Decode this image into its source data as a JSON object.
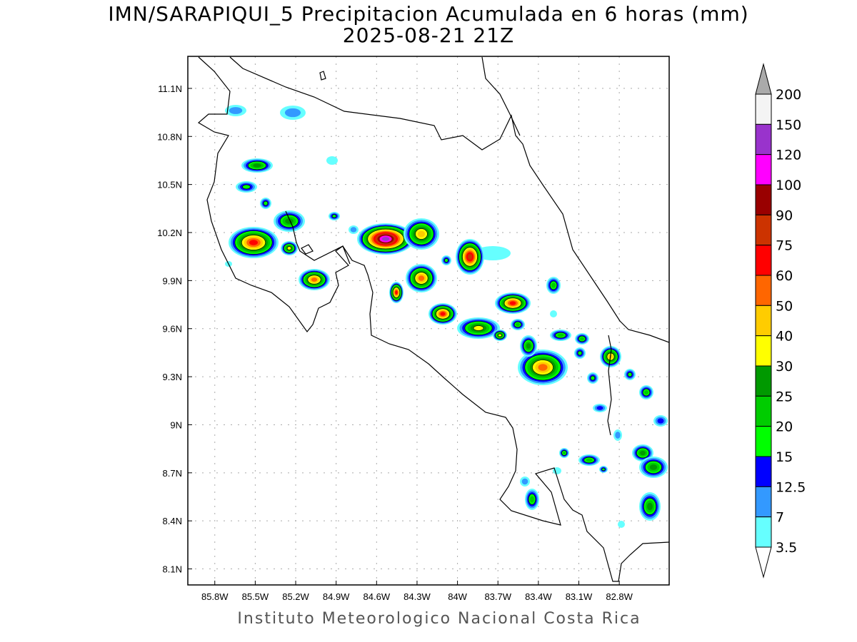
{
  "title": {
    "line1": "IMN/SARAPIQUI_5 Precipitacion Acumulada en 6 horas (mm)",
    "line2": "2025-08-21 21Z"
  },
  "credit": "Instituto Meteorologico Nacional Costa Rica",
  "map": {
    "lon_range": [
      -86.0,
      -82.43
    ],
    "lat_range": [
      8.0,
      11.3
    ],
    "lon_ticks": [
      {
        "value": -85.8,
        "label": "85.8W"
      },
      {
        "value": -85.5,
        "label": "85.5W"
      },
      {
        "value": -85.2,
        "label": "85.2W"
      },
      {
        "value": -84.9,
        "label": "84.9W"
      },
      {
        "value": -84.6,
        "label": "84.6W"
      },
      {
        "value": -84.3,
        "label": "84.3W"
      },
      {
        "value": -84.0,
        "label": "84W"
      },
      {
        "value": -83.7,
        "label": "83.7W"
      },
      {
        "value": -83.4,
        "label": "83.4W"
      },
      {
        "value": -83.1,
        "label": "83.1W"
      },
      {
        "value": -82.8,
        "label": "82.8W"
      }
    ],
    "lat_ticks": [
      {
        "value": 11.1,
        "label": "11.1N"
      },
      {
        "value": 10.8,
        "label": "10.8N"
      },
      {
        "value": 10.5,
        "label": "10.5N"
      },
      {
        "value": 10.2,
        "label": "10.2N"
      },
      {
        "value": 9.9,
        "label": "9.9N"
      },
      {
        "value": 9.6,
        "label": "9.6N"
      },
      {
        "value": 9.3,
        "label": "9.3N"
      },
      {
        "value": 9.0,
        "label": "9N"
      },
      {
        "value": 8.7,
        "label": "8.7N"
      },
      {
        "value": 8.4,
        "label": "8.4N"
      },
      {
        "value": 8.1,
        "label": "8.1N"
      }
    ]
  },
  "colorbar": {
    "labels": [
      "200",
      "150",
      "120",
      "100",
      "90",
      "75",
      "60",
      "50",
      "40",
      "30",
      "25",
      "20",
      "15",
      "12.5",
      "7",
      "3.5"
    ],
    "colors": [
      "#f4f4f4",
      "#9933cc",
      "#ff00ff",
      "#990000",
      "#cc3300",
      "#ff0000",
      "#ff6600",
      "#ffcc00",
      "#ffff00",
      "#009900",
      "#00cc00",
      "#00ff00",
      "#0000ff",
      "#3399ff",
      "#66ffff"
    ],
    "over_color": "#aaaaaa",
    "under_color": "#ffffff"
  }
}
